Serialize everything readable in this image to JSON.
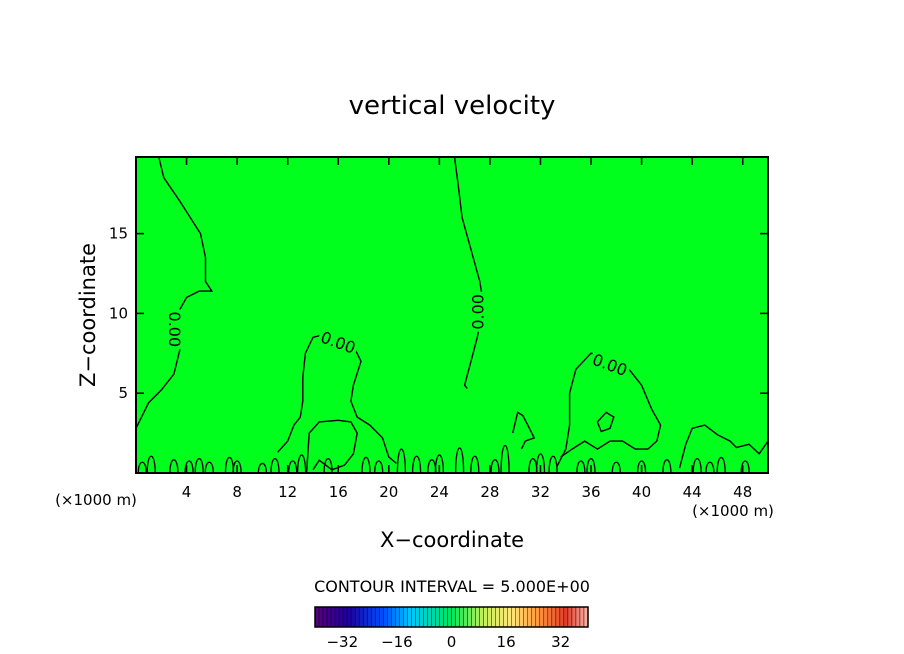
{
  "chart_data": {
    "type": "contour",
    "title": "vertical velocity",
    "xlabel": "X−coordinate",
    "ylabel": "Z−coordinate",
    "x_unit_left": "(×1000 m)",
    "x_unit_right": "(×1000 m)",
    "xlim": [
      0,
      50
    ],
    "ylim": [
      0,
      19.8
    ],
    "xticks": [
      4,
      8,
      12,
      16,
      20,
      24,
      28,
      32,
      36,
      40,
      44,
      48
    ],
    "yticks": [
      5,
      10,
      15
    ],
    "fill_color": "#00ff1c",
    "contour_label": "0.00",
    "contour_interval_text": "CONTOUR INTERVAL = 5.000E+00",
    "colorbar": {
      "range": [
        -40,
        40
      ],
      "ticks": [
        -32,
        -16,
        0,
        16,
        32
      ],
      "tick_labels": [
        "−32",
        "−16",
        "0",
        "16",
        "32"
      ]
    },
    "contours": [
      {
        "points": [
          [
            1.8,
            19.8
          ],
          [
            2.2,
            18.5
          ],
          [
            3.5,
            17
          ],
          [
            5.1,
            15
          ],
          [
            5.5,
            13.5
          ],
          [
            5.5,
            12
          ],
          [
            6,
            11.4
          ],
          [
            5,
            11.4
          ],
          [
            4,
            11
          ],
          [
            3.3,
            10
          ],
          [
            3.5,
            7.8
          ],
          [
            3,
            6.2
          ],
          [
            2,
            5.2
          ],
          [
            1,
            4.4
          ],
          [
            0,
            2.8
          ]
        ],
        "label": {
          "x": 3.1,
          "y": 9.0,
          "angle": 90
        }
      },
      {
        "points": [
          [
            25.2,
            19.8
          ],
          [
            25.5,
            18
          ],
          [
            25.8,
            16
          ],
          [
            26.5,
            14
          ],
          [
            27.2,
            12
          ],
          [
            27.5,
            10.5
          ],
          [
            27,
            8.5
          ],
          [
            26.5,
            7
          ],
          [
            26,
            5.5
          ],
          [
            26.2,
            5.3
          ]
        ],
        "label": {
          "x": 27.0,
          "y": 10.1,
          "angle": -90
        }
      },
      {
        "points": [
          [
            11.2,
            1.3
          ],
          [
            12,
            2
          ],
          [
            12.5,
            3
          ],
          [
            13,
            3.5
          ],
          [
            13.2,
            4.5
          ],
          [
            13.2,
            6
          ],
          [
            13.4,
            7.5
          ],
          [
            14,
            8.5
          ],
          [
            15,
            8.7
          ],
          [
            16.5,
            8.6
          ],
          [
            17.3,
            7.8
          ],
          [
            17.8,
            7
          ],
          [
            17.2,
            5.5
          ],
          [
            17,
            4.5
          ],
          [
            17.5,
            3.5
          ],
          [
            18.5,
            3
          ],
          [
            19.5,
            2.2
          ],
          [
            20,
            1
          ],
          [
            20.6,
            0.6
          ]
        ],
        "label": {
          "x": 16.0,
          "y": 8.2,
          "angle": 20
        }
      },
      {
        "points": [
          [
            33.3,
            0.4
          ],
          [
            34,
            1.5
          ],
          [
            34.3,
            3
          ],
          [
            34.3,
            5
          ],
          [
            34.8,
            6.5
          ],
          [
            36,
            7.5
          ],
          [
            37.5,
            7.3
          ],
          [
            39,
            6.5
          ],
          [
            40,
            5.5
          ],
          [
            40.8,
            4
          ],
          [
            41.5,
            3
          ],
          [
            41.2,
            2
          ],
          [
            40.5,
            1.5
          ],
          [
            39.5,
            1.5
          ],
          [
            38.5,
            2
          ],
          [
            37.5,
            2
          ],
          [
            36.5,
            1.5
          ],
          [
            35.5,
            2
          ],
          [
            34.5,
            1.5
          ],
          [
            33.6,
            1
          ]
        ],
        "label": {
          "x": 37.5,
          "y": 6.8,
          "angle": 20
        }
      },
      {
        "points": [
          [
            36.5,
            3.2
          ],
          [
            37.2,
            3.8
          ],
          [
            37.8,
            3.5
          ],
          [
            37.5,
            2.8
          ],
          [
            36.8,
            2.6
          ],
          [
            36.5,
            3.2
          ]
        ]
      },
      {
        "points": [
          [
            13.5,
            0
          ],
          [
            13.7,
            2.5
          ],
          [
            14.5,
            3.2
          ],
          [
            16,
            3.3
          ],
          [
            17,
            3.2
          ],
          [
            17.5,
            2.5
          ],
          [
            17.2,
            1.2
          ],
          [
            16.5,
            0.5
          ],
          [
            15.5,
            0.2
          ],
          [
            14.5,
            0.8
          ],
          [
            14,
            0.2
          ]
        ]
      },
      {
        "points": [
          [
            29.8,
            2.5
          ],
          [
            30.2,
            3.8
          ],
          [
            30.6,
            3.6
          ],
          [
            31,
            3
          ],
          [
            31.5,
            2.2
          ],
          [
            30.8,
            2
          ],
          [
            30.5,
            1.5
          ]
        ]
      },
      {
        "points": [
          [
            43,
            0.3
          ],
          [
            43.5,
            1.8
          ],
          [
            44,
            2.8
          ],
          [
            45,
            3
          ],
          [
            46,
            2.4
          ],
          [
            47,
            2
          ],
          [
            47.5,
            1.6
          ],
          [
            48.5,
            1.8
          ],
          [
            49.3,
            1.2
          ],
          [
            50,
            2
          ]
        ]
      }
    ],
    "spikes": [
      [
        0.5,
        0.9
      ],
      [
        1.2,
        1.4
      ],
      [
        3.0,
        1.1
      ],
      [
        4.2,
        1.0
      ],
      [
        5.0,
        1.2
      ],
      [
        5.8,
        0.9
      ],
      [
        7.4,
        1.3
      ],
      [
        8.0,
        1.0
      ],
      [
        10.0,
        0.8
      ],
      [
        11.0,
        1.2
      ],
      [
        12.4,
        1.0
      ],
      [
        13.1,
        1.5
      ],
      [
        15.2,
        1.2
      ],
      [
        18.2,
        1.3
      ],
      [
        19.2,
        1.0
      ],
      [
        21.0,
        2.0
      ],
      [
        22.2,
        1.4
      ],
      [
        23.4,
        1.1
      ],
      [
        24.0,
        1.5
      ],
      [
        25.6,
        2.1
      ],
      [
        26.8,
        1.4
      ],
      [
        28.4,
        1.1
      ],
      [
        29.2,
        2.3
      ],
      [
        31.4,
        1.2
      ],
      [
        32.0,
        1.6
      ],
      [
        33.0,
        1.4
      ],
      [
        35.2,
        1.0
      ],
      [
        36.0,
        1.2
      ],
      [
        38.0,
        0.9
      ],
      [
        40.0,
        1.0
      ],
      [
        42.0,
        1.1
      ],
      [
        44.4,
        1.2
      ],
      [
        45.4,
        0.9
      ],
      [
        46.3,
        1.3
      ],
      [
        48.2,
        1.0
      ]
    ]
  }
}
